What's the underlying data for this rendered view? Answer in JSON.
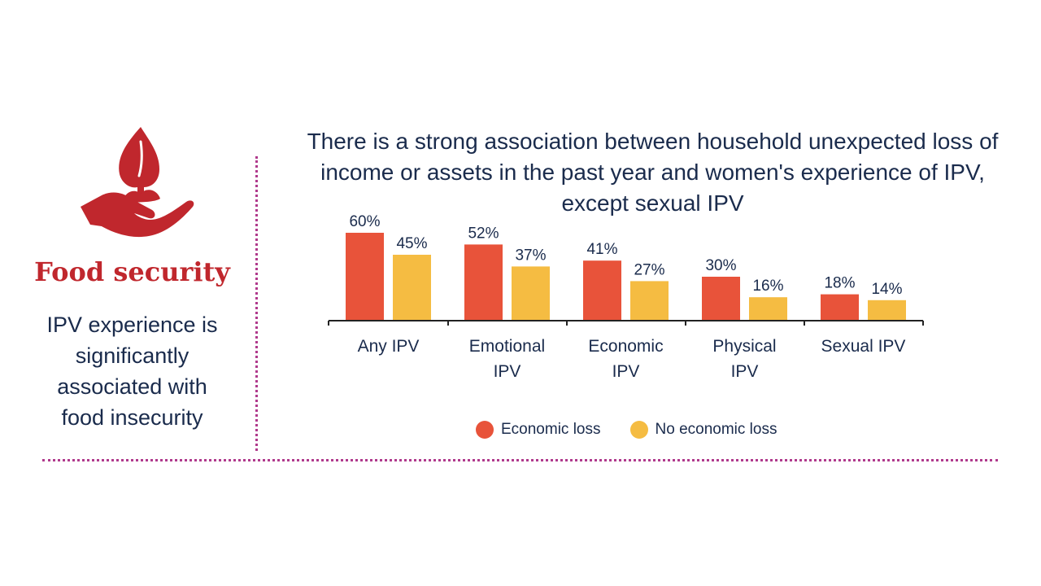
{
  "left_panel": {
    "icon": "hand-holding-plant-icon",
    "title": "Food security",
    "text_lines": [
      "IPV experience is",
      "significantly",
      "associated with",
      "food insecurity"
    ]
  },
  "colors": {
    "economic_loss": "#e8533a",
    "no_economic_loss": "#f5bc42",
    "accent_red": "#c0272d",
    "navy_text": "#1a2b4c",
    "divider": "#b03a8c"
  },
  "chart_data": {
    "type": "bar",
    "title_lines": [
      "There is a strong association between household unexpected loss of",
      "income or assets in the past year and women's experience of IPV,",
      "except sexual IPV"
    ],
    "categories": [
      [
        "Any IPV"
      ],
      [
        "Emotional",
        "IPV"
      ],
      [
        "Economic",
        "IPV"
      ],
      [
        "Physical",
        "IPV"
      ],
      [
        "Sexual IPV"
      ]
    ],
    "series": [
      {
        "name": "Economic loss",
        "values": [
          60,
          52,
          41,
          30,
          18
        ],
        "labels": [
          "60%",
          "52%",
          "41%",
          "30%",
          "18%"
        ]
      },
      {
        "name": "No economic loss",
        "values": [
          45,
          37,
          27,
          16,
          14
        ],
        "labels": [
          "45%",
          "37%",
          "27%",
          "16%",
          "14%"
        ]
      }
    ],
    "ylim": [
      0,
      60
    ],
    "grid": false,
    "legend_position": "bottom"
  }
}
